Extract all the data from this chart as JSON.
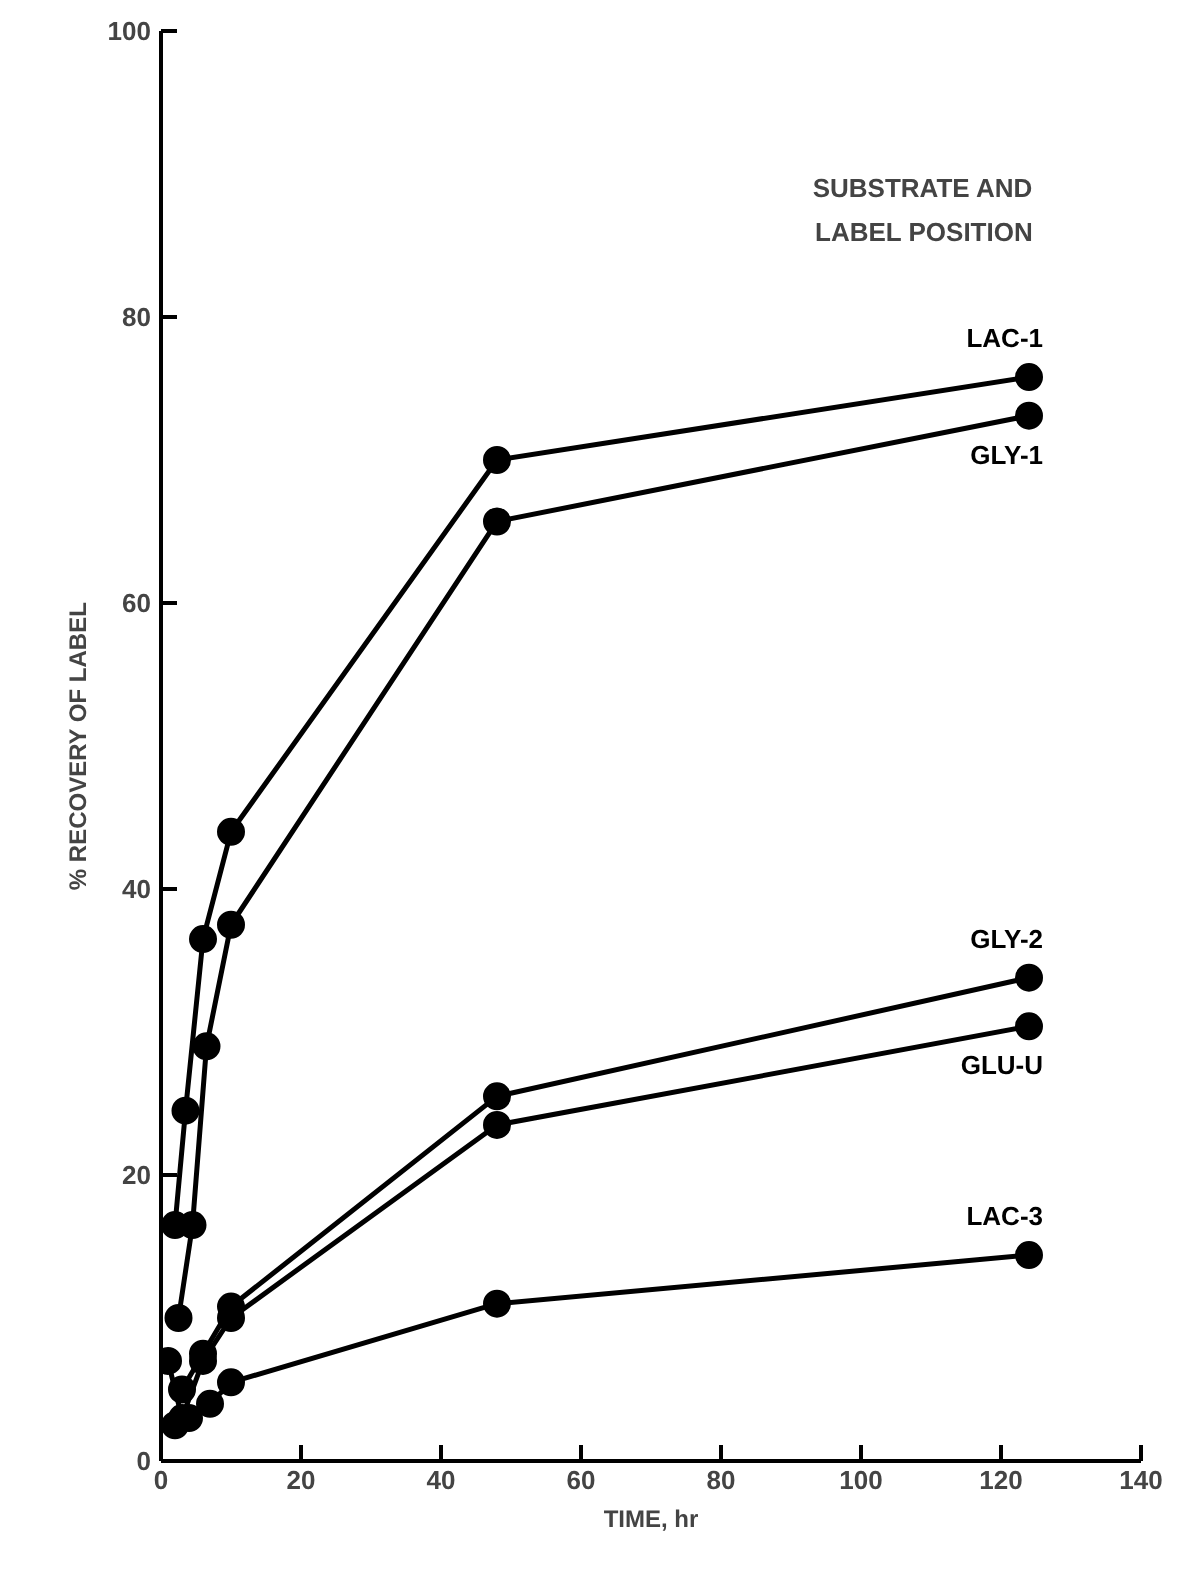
{
  "chart_data": {
    "type": "line",
    "xlabel": "TIME, hr",
    "ylabel": "% RECOVERY OF LABEL",
    "legend_title": "SUBSTRATE AND LABEL POSITION",
    "xlim": [
      0,
      140
    ],
    "ylim": [
      0,
      100
    ],
    "xticks": [
      0,
      20,
      40,
      60,
      80,
      100,
      120,
      140
    ],
    "yticks": [
      0,
      20,
      40,
      60,
      80,
      100
    ],
    "grid": false,
    "marker": "circle",
    "line_style": "solid",
    "legend": "right",
    "series": [
      {
        "name": "LAC-1",
        "color": "#000000",
        "x": [
          2,
          3.5,
          6,
          10,
          48,
          124
        ],
        "values": [
          16.5,
          24.5,
          36.5,
          44,
          70,
          75.8
        ]
      },
      {
        "name": "GLY-1",
        "color": "#000000",
        "x": [
          2.5,
          4.5,
          6.5,
          10,
          48,
          124
        ],
        "values": [
          10,
          16.5,
          29,
          37.5,
          65.7,
          73.1
        ]
      },
      {
        "name": "GLY-2",
        "color": "#000000",
        "x": [
          3,
          6,
          10,
          48,
          124
        ],
        "values": [
          5,
          7.5,
          10.8,
          25.5,
          33.8
        ]
      },
      {
        "name": "GLU-U",
        "color": "#000000",
        "x": [
          1,
          3,
          6,
          10,
          48,
          124
        ],
        "values": [
          7,
          3,
          7,
          10,
          23.5,
          30.4
        ]
      },
      {
        "name": "LAC-3",
        "color": "#000000",
        "x": [
          2,
          4,
          7,
          10,
          48,
          124
        ],
        "values": [
          2.5,
          3,
          4,
          5.5,
          11,
          14.4
        ]
      }
    ]
  }
}
